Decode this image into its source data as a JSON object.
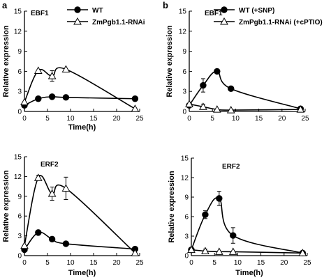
{
  "chart_data": [
    {
      "type": "line",
      "panel_label": "a",
      "title": "EBF1",
      "xlabel": "Time(h)",
      "ylabel": "Relative expression",
      "xlim": [
        0,
        25
      ],
      "ylim": [
        0,
        15
      ],
      "xticks": [
        "0",
        "5",
        "10",
        "15",
        "20",
        "25"
      ],
      "yticks": [
        "0",
        "3",
        "6",
        "9",
        "12",
        "15"
      ],
      "legend_position": "top-right",
      "series": [
        {
          "name": "WT",
          "marker": "filled-circle",
          "x": [
            0,
            3,
            6,
            9,
            24
          ],
          "y": [
            0.9,
            1.9,
            2.2,
            2.1,
            1.9
          ],
          "err": [
            0,
            0,
            0,
            0,
            0
          ]
        },
        {
          "name": "ZmPgb1.1-RNAi",
          "marker": "open-triangle",
          "x": [
            0,
            3,
            6,
            9,
            24
          ],
          "y": [
            1.4,
            6.1,
            5.3,
            6.3,
            0.4
          ],
          "err": [
            0,
            0,
            0.8,
            0,
            0
          ]
        }
      ]
    },
    {
      "type": "line",
      "panel_label": "b",
      "title": "EBF1",
      "xlabel": "",
      "ylabel": "Relative expression",
      "xlim": [
        0,
        25
      ],
      "ylim": [
        0,
        15
      ],
      "xticks": [
        "0",
        "5",
        "10",
        "15",
        "20",
        "25"
      ],
      "yticks": [
        "0",
        "3",
        "6",
        "9",
        "12",
        "15"
      ],
      "legend_position": "top-right",
      "series": [
        {
          "name": "WT (+SNP)",
          "marker": "filled-circle",
          "x": [
            0,
            3,
            6,
            9,
            24
          ],
          "y": [
            0.9,
            3.9,
            6.0,
            3.4,
            0.4
          ],
          "err": [
            0,
            1.0,
            0,
            0,
            0
          ]
        },
        {
          "name": "ZmPgb1.1-RNAi (+cPTIO)",
          "marker": "open-triangle",
          "x": [
            0,
            3,
            6,
            9,
            24
          ],
          "y": [
            1.1,
            0.7,
            0.3,
            0.2,
            0.3
          ],
          "err": [
            0,
            0.4,
            0,
            0,
            0
          ]
        }
      ]
    },
    {
      "type": "line",
      "title": "ERF2",
      "xlabel": "Time(h)",
      "ylabel": "Relative expression",
      "xlim": [
        0,
        25
      ],
      "ylim": [
        0,
        15
      ],
      "xticks": [
        "0",
        "5",
        "10",
        "15",
        "20",
        "25"
      ],
      "yticks": [
        "0",
        "3",
        "6",
        "9",
        "12",
        "15"
      ],
      "series": [
        {
          "name": "WT",
          "marker": "filled-circle",
          "x": [
            0,
            3,
            6,
            9,
            24
          ],
          "y": [
            0.9,
            3.5,
            2.5,
            1.8,
            1.0
          ],
          "err": [
            0,
            0.3,
            0,
            0,
            0
          ]
        },
        {
          "name": "ZmPgb1.1-RNAi",
          "marker": "open-triangle",
          "x": [
            0,
            3,
            6,
            9,
            24
          ],
          "y": [
            1.5,
            11.8,
            9.4,
            10.2,
            0.4
          ],
          "err": [
            0,
            0.4,
            1.0,
            1.7,
            0
          ]
        }
      ]
    },
    {
      "type": "line",
      "title": "ERF2",
      "xlabel": "Time(h)",
      "ylabel": "Relative expression",
      "xlim": [
        0,
        25
      ],
      "ylim": [
        0,
        15
      ],
      "xticks": [
        "0",
        "5",
        "10",
        "15",
        "20",
        "25"
      ],
      "yticks": [
        "0",
        "3",
        "6",
        "9",
        "12",
        "15"
      ],
      "series": [
        {
          "name": "WT (+SNP)",
          "marker": "filled-circle",
          "x": [
            0,
            3,
            6,
            9,
            24
          ],
          "y": [
            0.9,
            6.3,
            8.8,
            3.1,
            0.4
          ],
          "err": [
            0,
            0.6,
            1.1,
            1.2,
            0
          ]
        },
        {
          "name": "ZmPgb1.1-RNAi (+cPTIO)",
          "marker": "open-triangle",
          "x": [
            0,
            3,
            6,
            9,
            24
          ],
          "y": [
            0.9,
            0.7,
            0.6,
            0.6,
            0.4
          ],
          "err": [
            0,
            0.3,
            0,
            0,
            0
          ]
        }
      ]
    }
  ]
}
